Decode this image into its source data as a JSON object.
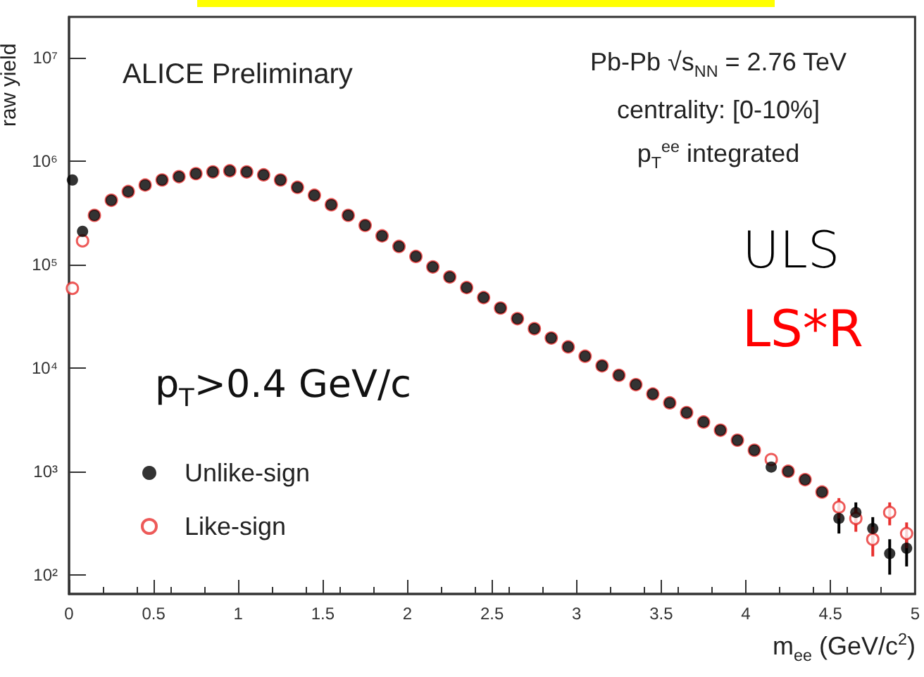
{
  "chart_data": {
    "type": "scatter",
    "xlabel": "m$_{ee}$  (GeV/c$^{2}$)",
    "ylabel": "raw yield",
    "x": [
      0.02,
      0.08,
      0.15,
      0.25,
      0.35,
      0.45,
      0.55,
      0.65,
      0.75,
      0.85,
      0.95,
      1.05,
      1.15,
      1.25,
      1.35,
      1.45,
      1.55,
      1.65,
      1.75,
      1.85,
      1.95,
      2.05,
      2.15,
      2.25,
      2.35,
      2.45,
      2.55,
      2.65,
      2.75,
      2.85,
      2.95,
      3.05,
      3.15,
      3.25,
      3.35,
      3.45,
      3.55,
      3.65,
      3.75,
      3.85,
      3.95,
      4.05,
      4.15,
      4.25,
      4.35,
      4.45,
      4.55,
      4.65,
      4.75,
      4.85,
      4.95
    ],
    "series": [
      {
        "name": "Unlike-sign",
        "color": "#000000",
        "marker": "circle",
        "values": [
          660000,
          210000,
          300000,
          420000,
          510000,
          590000,
          660000,
          710000,
          760000,
          790000,
          810000,
          790000,
          740000,
          660000,
          560000,
          470000,
          380000,
          300000,
          240000,
          190000,
          150000,
          120000,
          95000,
          76000,
          60000,
          48000,
          38000,
          30000,
          24000,
          19500,
          16000,
          13000,
          10500,
          8500,
          6900,
          5600,
          4600,
          3700,
          3000,
          2500,
          2000,
          1600,
          1100,
          1000,
          830,
          630,
          350,
          400,
          280,
          160,
          180
        ],
        "errors": [
          null,
          null,
          null,
          null,
          null,
          null,
          null,
          null,
          null,
          null,
          null,
          null,
          null,
          null,
          null,
          null,
          null,
          null,
          null,
          null,
          null,
          null,
          null,
          null,
          null,
          null,
          null,
          null,
          null,
          null,
          null,
          null,
          null,
          null,
          null,
          null,
          null,
          null,
          null,
          null,
          null,
          null,
          null,
          null,
          null,
          null,
          100,
          100,
          80,
          60,
          60
        ]
      },
      {
        "name": "Like-sign",
        "color": "#e8312f",
        "marker": "circle",
        "values": [
          59000,
          170000,
          300000,
          420000,
          510000,
          590000,
          660000,
          710000,
          760000,
          790000,
          810000,
          790000,
          740000,
          660000,
          560000,
          470000,
          380000,
          300000,
          240000,
          190000,
          150000,
          120000,
          95000,
          76000,
          60000,
          48000,
          38000,
          30000,
          24000,
          19500,
          16000,
          13000,
          10500,
          8500,
          6900,
          5600,
          4600,
          3700,
          3000,
          2500,
          2000,
          1600,
          1300,
          1000,
          830,
          630,
          450,
          350,
          220,
          400,
          250
        ],
        "errors": [
          null,
          null,
          null,
          null,
          null,
          null,
          null,
          null,
          null,
          null,
          null,
          null,
          null,
          null,
          null,
          null,
          null,
          null,
          null,
          null,
          null,
          null,
          null,
          null,
          null,
          null,
          null,
          null,
          null,
          null,
          null,
          null,
          null,
          null,
          null,
          null,
          null,
          null,
          null,
          null,
          null,
          null,
          null,
          null,
          null,
          null,
          100,
          90,
          70,
          100,
          70
        ]
      }
    ],
    "xlim": [
      0,
      5
    ],
    "xticks": [
      0,
      0.5,
      1,
      1.5,
      2,
      2.5,
      3,
      3.5,
      4,
      4.5,
      5
    ],
    "ylim": [
      65,
      25000000
    ],
    "log": true,
    "yticks": [
      {
        "value": 100,
        "label": "10²"
      },
      {
        "value": 1000,
        "label": "10³"
      },
      {
        "value": 10000,
        "label": "10⁴"
      },
      {
        "value": 100000,
        "label": "10⁵"
      },
      {
        "value": 1000000,
        "label": "10⁶"
      },
      {
        "value": 10000000,
        "label": "10⁷"
      }
    ],
    "grid": false,
    "legend": "bottom left",
    "annotations": [
      "ALICE Preliminary",
      "Pb-Pb  √s$_{NN}$ = 2.76 TeV",
      "centrality: [0-10%]",
      "p$_{T}$$^{ee}$ integrated",
      "ULS",
      "LS*R",
      "p$_{T}$>0.4 GeV/c"
    ]
  }
}
